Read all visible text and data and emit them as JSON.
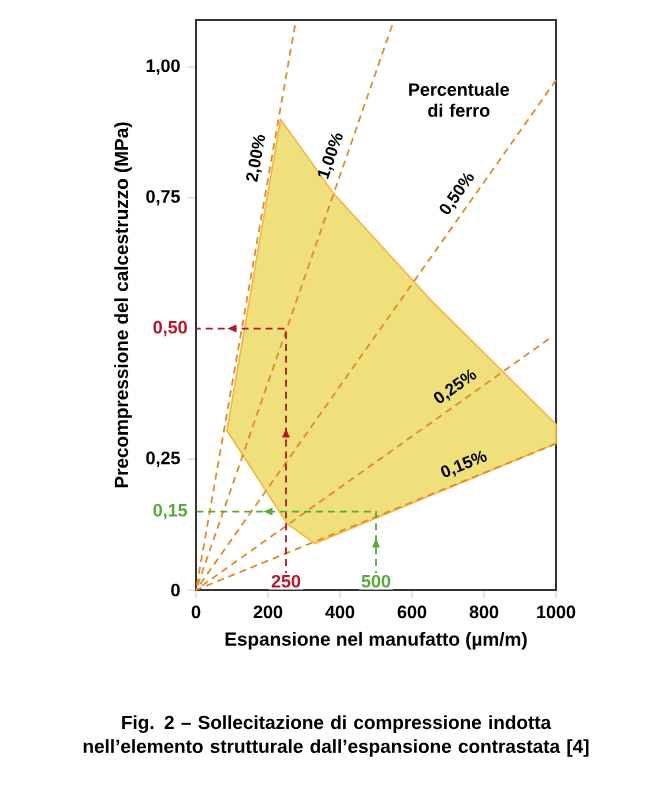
{
  "chart_data": {
    "type": "line",
    "title": "Fig. 2 – Sollecitazione di compressione indotta nell’elemento strutturale dall’espansione contrastata [4]",
    "xlabel": "Espansione nel manufatto (µm/m)",
    "ylabel": "Precompressione del calcestruzzo (MPa)",
    "xlim": [
      0,
      1000
    ],
    "ylim": [
      0,
      1.09
    ],
    "xticks": [
      0,
      200,
      400,
      600,
      800,
      1000
    ],
    "yticks": [
      0,
      {
        "value": 0.25,
        "label": "0,25"
      },
      {
        "value": 0.75,
        "label": "0,75"
      },
      {
        "value": 1,
        "label": "1,00"
      }
    ],
    "series": [
      {
        "type": "area",
        "color": "#efe07c",
        "x": [
          235,
          385,
          654,
          1000,
          1000,
          330,
          253,
          86
        ],
        "values": [
          0.9,
          0.756,
          0.553,
          0.317,
          0.28,
          0.089,
          0.127,
          0.305
        ]
      },
      {
        "name": "2,00%",
        "color": "#e08c2c",
        "line_style": "dashed",
        "x": [
          0,
          275
        ],
        "values": [
          0,
          1.08
        ]
      },
      {
        "name": "1,00%",
        "color": "#e08c2c",
        "line_style": "dashed",
        "x": [
          0,
          545
        ],
        "values": [
          0,
          1.08
        ]
      },
      {
        "name": "0,50%",
        "color": "#e08c2c",
        "line_style": "dashed",
        "x": [
          0,
          1000
        ],
        "values": [
          0,
          0.975
        ]
      },
      {
        "name": "0,25%",
        "color": "#e08c2c",
        "line_style": "dashed",
        "x": [
          0,
          980
        ],
        "values": [
          0,
          0.48
        ]
      },
      {
        "name": "0,15%",
        "color": "#e08c2c",
        "line_style": "dashed",
        "x": [
          0,
          1000
        ],
        "values": [
          0,
          0.28
        ]
      },
      {
        "color": "#b5162b",
        "line_style": "dashed",
        "x": [
          250,
          250,
          0
        ],
        "values": [
          0,
          0.5,
          0.5
        ]
      },
      {
        "color": "#5aa83c",
        "line_style": "dashed",
        "x": [
          500,
          500,
          0
        ],
        "values": [
          0,
          0.15,
          0.15
        ]
      }
    ],
    "annotations": [
      "Percentuale di ferro",
      {
        "text": "250",
        "x": 250,
        "y": 0
      },
      {
        "text": "500",
        "x": 500,
        "y": 0
      },
      {
        "text": "0,50",
        "x": 0,
        "y": 0.5
      },
      {
        "text": "0,15",
        "x": 0,
        "y": 0.15
      }
    ]
  }
}
